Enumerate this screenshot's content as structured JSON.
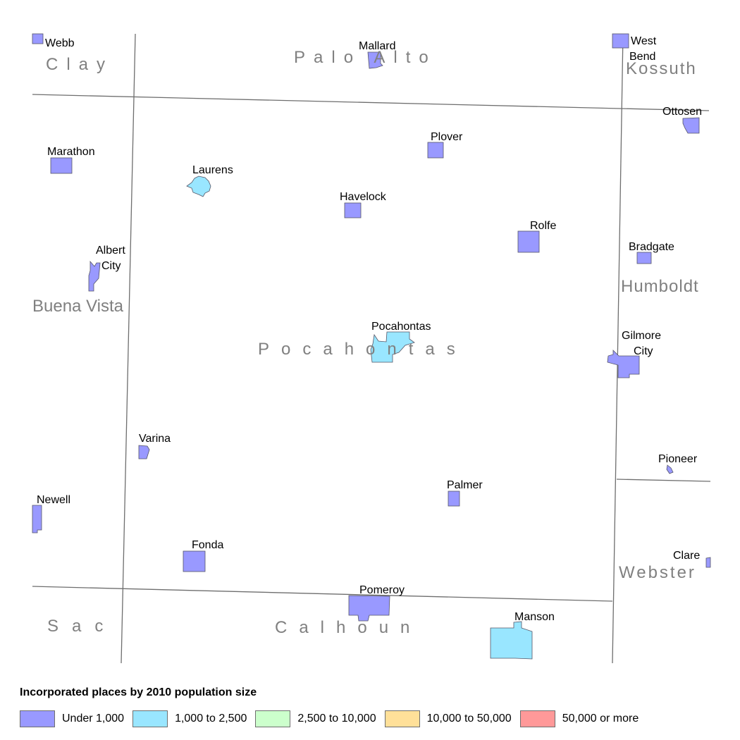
{
  "map": {
    "counties": {
      "clay": "Clay",
      "palo_alto": "Palo Alto",
      "kossuth": "Kossuth",
      "buena_vista": "Buena Vista",
      "pocahontas": "Pocahontas",
      "humboldt": "Humboldt",
      "webster": "Webster",
      "sac": "Sac",
      "calhoun": "Calhoun"
    },
    "places": [
      {
        "key": "webb",
        "label": [
          "Webb"
        ],
        "category": "under_1000"
      },
      {
        "key": "mallard",
        "label": [
          "Mallard"
        ],
        "category": "under_1000"
      },
      {
        "key": "west_bend",
        "label": [
          "West",
          "Bend"
        ],
        "category": "under_1000"
      },
      {
        "key": "ottosen",
        "label": [
          "Ottosen"
        ],
        "category": "under_1000"
      },
      {
        "key": "marathon",
        "label": [
          "Marathon"
        ],
        "category": "under_1000"
      },
      {
        "key": "laurens",
        "label": [
          "Laurens"
        ],
        "category": "1000_to_2500"
      },
      {
        "key": "plover",
        "label": [
          "Plover"
        ],
        "category": "under_1000"
      },
      {
        "key": "havelock",
        "label": [
          "Havelock"
        ],
        "category": "under_1000"
      },
      {
        "key": "rolfe",
        "label": [
          "Rolfe"
        ],
        "category": "under_1000"
      },
      {
        "key": "albert_city",
        "label": [
          "Albert",
          "City"
        ],
        "category": "under_1000"
      },
      {
        "key": "bradgate",
        "label": [
          "Bradgate"
        ],
        "category": "under_1000"
      },
      {
        "key": "pocahontas",
        "label": [
          "Pocahontas"
        ],
        "category": "1000_to_2500"
      },
      {
        "key": "gilmore_city",
        "label": [
          "Gilmore",
          "City"
        ],
        "category": "under_1000"
      },
      {
        "key": "varina",
        "label": [
          "Varina"
        ],
        "category": "under_1000"
      },
      {
        "key": "pioneer",
        "label": [
          "Pioneer"
        ],
        "category": "under_1000"
      },
      {
        "key": "palmer",
        "label": [
          "Palmer"
        ],
        "category": "under_1000"
      },
      {
        "key": "newell",
        "label": [
          "Newell"
        ],
        "category": "under_1000"
      },
      {
        "key": "fonda",
        "label": [
          "Fonda"
        ],
        "category": "under_1000"
      },
      {
        "key": "clare",
        "label": [
          "Clare"
        ],
        "category": "under_1000"
      },
      {
        "key": "pomeroy",
        "label": [
          "Pomeroy"
        ],
        "category": "under_1000"
      },
      {
        "key": "manson",
        "label": [
          "Manson"
        ],
        "category": "1000_to_2500"
      }
    ]
  },
  "legend": {
    "title": "Incorporated places by 2010 population size",
    "items": [
      {
        "key": "under_1000",
        "label": "Under 1,000",
        "color": "#9999ff"
      },
      {
        "key": "1000_to_2500",
        "label": "1,000 to 2,500",
        "color": "#99e6ff"
      },
      {
        "key": "2500_to_10000",
        "label": "2,500 to 10,000",
        "color": "#ccffcc"
      },
      {
        "key": "10000_to_50000",
        "label": "10,000 to 50,000",
        "color": "#ffe099"
      },
      {
        "key": "50000_plus",
        "label": "50,000 or more",
        "color": "#ff9999"
      }
    ]
  }
}
